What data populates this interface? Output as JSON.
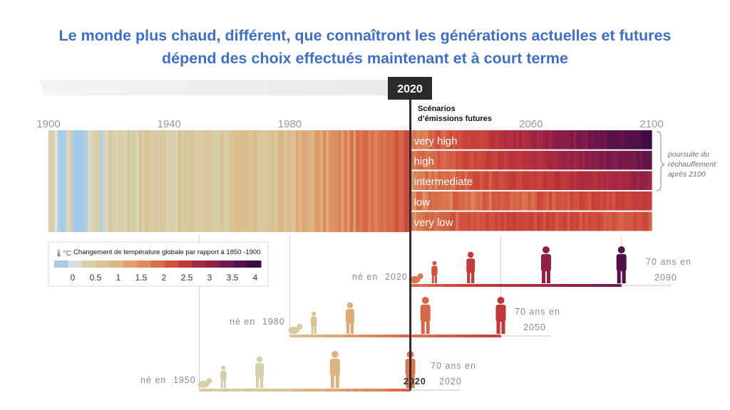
{
  "title": {
    "line1": "Le monde plus chaud, différent, que connaîtront les générations actuelles et futures",
    "line2": "dépend des choix effectués maintenant et à court terme"
  },
  "chart_data": {
    "type": "heatmap",
    "x_axis": {
      "min": 1900,
      "max": 2100,
      "ticks": [
        1900,
        1940,
        1980,
        2060,
        2100
      ]
    },
    "marker_year": 2020,
    "scenarios_heading": [
      "Scénarios",
      "d’émissions futures"
    ],
    "scenarios": [
      {
        "name": "very high",
        "end_value": 4.0
      },
      {
        "name": "high",
        "end_value": 3.5
      },
      {
        "name": "intermediate",
        "end_value": 2.7
      },
      {
        "name": "low",
        "end_value": 1.8
      },
      {
        "name": "very low",
        "end_value": 1.5
      }
    ],
    "bracket_note": [
      "poursuite du",
      "réchauffement",
      "après 2100"
    ],
    "legend": {
      "title": "Changement de température globale par rapport à 1850   -1900",
      "unit_symbol": "°C",
      "tick_labels": [
        "0",
        "0.5",
        "1",
        "1.5",
        "2",
        "2.5",
        "3",
        "3.5",
        "4"
      ],
      "colors": [
        "#a8c9e8",
        "#dcdcdc",
        "#d8cfa7",
        "#dcc49a",
        "#ddb486",
        "#e2a070",
        "#e08a5e",
        "#d9704a",
        "#d0523e",
        "#bf3a3a",
        "#a52a3f",
        "#8e2148",
        "#721a4f",
        "#55124e",
        "#3c0c45"
      ]
    },
    "generations": [
      {
        "born_label": "né en",
        "born_year": "1950",
        "age_label": "70 ans en",
        "age_year": "2020"
      },
      {
        "born_label": "né en",
        "born_year": "1980",
        "age_label": "70 ans en",
        "age_year": "2050"
      },
      {
        "born_label": "né en",
        "born_year": "2020",
        "age_label": "70 ans en",
        "age_year": "2090"
      }
    ]
  }
}
